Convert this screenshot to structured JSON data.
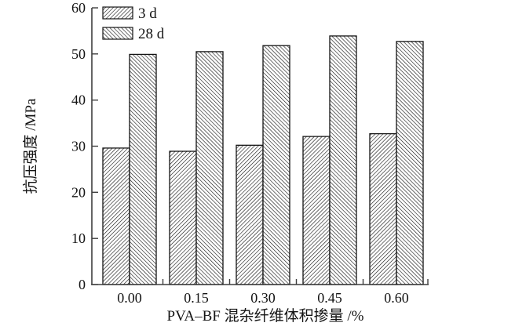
{
  "figure": {
    "background": "#ffffff",
    "ink_color": "#141414",
    "axis_color": "#3f3f3f",
    "bar_fill": "#ffffff",
    "hatch_color": "#141414"
  },
  "chart_data": {
    "type": "bar",
    "title": "",
    "categories": [
      "0.00",
      "0.15",
      "0.30",
      "0.45",
      "0.60"
    ],
    "series": [
      {
        "name": "3 d",
        "hatch": "forward-diagonal",
        "values": [
          29.6,
          28.9,
          30.2,
          32.1,
          32.7
        ]
      },
      {
        "name": "28 d",
        "hatch": "backward-diagonal",
        "values": [
          49.9,
          50.5,
          51.8,
          53.9,
          52.7
        ]
      }
    ],
    "xlabel": "PVA–BF 混杂纤维体积掺量 /%",
    "ylabel": "抗压强度 /MPa",
    "ylim": [
      0,
      60
    ],
    "yticks": [
      0,
      10,
      20,
      30,
      40,
      50,
      60
    ],
    "grid": false,
    "legend_position": "top-left-inside"
  }
}
